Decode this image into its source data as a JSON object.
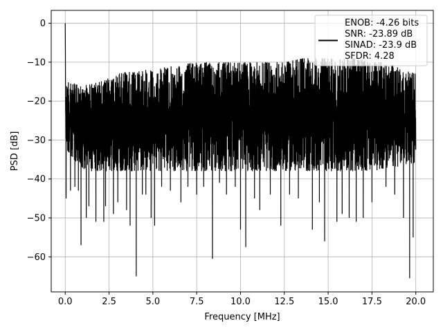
{
  "chart_data": {
    "type": "line",
    "title": "",
    "xlabel": "Frequency [MHz]",
    "ylabel": "PSD [dB]",
    "xlim": [
      -0.8,
      21.0
    ],
    "ylim": [
      -69.0,
      3.3
    ],
    "xticks": [
      0.0,
      2.5,
      5.0,
      7.5,
      10.0,
      12.5,
      15.0,
      17.5,
      20.0
    ],
    "xtick_labels": [
      "0.0",
      "2.5",
      "5.0",
      "7.5",
      "10.0",
      "12.5",
      "15.0",
      "17.5",
      "20.0"
    ],
    "yticks": [
      0,
      -10,
      -20,
      -30,
      -40,
      -50,
      -60
    ],
    "ytick_labels": [
      "0",
      "−10",
      "−20",
      "−30",
      "−40",
      "−50",
      "−60"
    ],
    "grid": true,
    "legend_position": "top-right",
    "series": [
      {
        "name": "ENOB: -4.26 bits\nSNR: -23.89 dB\nSINAD: -23.9 dB\nSFDR: 4.28",
        "color": "#000000",
        "x_range": [
          0.0,
          20.0
        ],
        "peak": [
          0.0,
          0.0
        ],
        "upper_envelope": [
          [
            0.1,
            -15
          ],
          [
            1.0,
            -16
          ],
          [
            2.0,
            -15
          ],
          [
            3.0,
            -13
          ],
          [
            4.0,
            -12
          ],
          [
            5.0,
            -12
          ],
          [
            6.0,
            -11
          ],
          [
            7.5,
            -10
          ],
          [
            9.0,
            -10
          ],
          [
            10.0,
            -10
          ],
          [
            11.0,
            -10
          ],
          [
            12.5,
            -10
          ],
          [
            13.5,
            -9
          ],
          [
            15.0,
            -9
          ],
          [
            16.5,
            -9
          ],
          [
            17.5,
            -10
          ],
          [
            18.5,
            -10
          ],
          [
            19.5,
            -12
          ],
          [
            20.0,
            -13
          ]
        ],
        "lower_envelope": [
          [
            0.1,
            -33
          ],
          [
            1.0,
            -38
          ],
          [
            2.0,
            -38
          ],
          [
            3.0,
            -38
          ],
          [
            5.0,
            -38
          ],
          [
            7.5,
            -38
          ],
          [
            10.0,
            -38
          ],
          [
            12.5,
            -38
          ],
          [
            15.0,
            -38
          ],
          [
            17.5,
            -38
          ],
          [
            20.0,
            -36
          ]
        ],
        "deep_nulls": [
          [
            0.05,
            -45
          ],
          [
            0.3,
            -43
          ],
          [
            0.55,
            -42
          ],
          [
            0.75,
            -43
          ],
          [
            0.9,
            -57
          ],
          [
            1.2,
            -50
          ],
          [
            1.35,
            -47
          ],
          [
            1.75,
            -51
          ],
          [
            2.2,
            -51
          ],
          [
            2.3,
            -47
          ],
          [
            2.75,
            -49
          ],
          [
            3.0,
            -46
          ],
          [
            3.5,
            -48
          ],
          [
            3.7,
            -52
          ],
          [
            4.05,
            -65
          ],
          [
            4.4,
            -44
          ],
          [
            4.6,
            -44
          ],
          [
            4.9,
            -50
          ],
          [
            5.1,
            -52
          ],
          [
            5.5,
            -42
          ],
          [
            6.0,
            -43
          ],
          [
            6.6,
            -46
          ],
          [
            7.0,
            -42
          ],
          [
            7.5,
            -44
          ],
          [
            7.9,
            -42
          ],
          [
            8.4,
            -60.5
          ],
          [
            8.8,
            -41
          ],
          [
            9.2,
            -44
          ],
          [
            9.7,
            -42
          ],
          [
            10.0,
            -49
          ],
          [
            10.0,
            -53
          ],
          [
            10.3,
            -57.5
          ],
          [
            10.8,
            -45
          ],
          [
            11.1,
            -48
          ],
          [
            11.7,
            -44
          ],
          [
            12.3,
            -52
          ],
          [
            12.8,
            -44
          ],
          [
            13.3,
            -45
          ],
          [
            14.1,
            -53
          ],
          [
            14.5,
            -46
          ],
          [
            14.8,
            -56
          ],
          [
            15.5,
            -51
          ],
          [
            15.8,
            -49
          ],
          [
            16.2,
            -50
          ],
          [
            16.6,
            -51
          ],
          [
            17.0,
            -50
          ],
          [
            17.5,
            -46
          ],
          [
            18.3,
            -42
          ],
          [
            18.8,
            -44
          ],
          [
            19.3,
            -50
          ],
          [
            19.65,
            -65.5
          ],
          [
            19.85,
            -55
          ]
        ]
      }
    ]
  }
}
